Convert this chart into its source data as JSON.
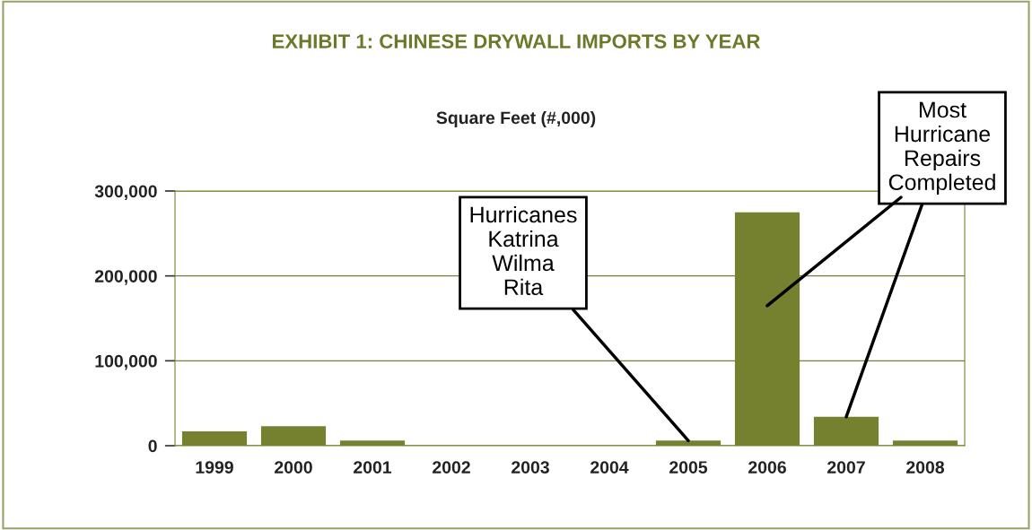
{
  "chart_data": {
    "type": "bar",
    "title": "EXHIBIT 1: CHINESE DRYWALL IMPORTS BY YEAR",
    "subtitle": "Square Feet (#,000)",
    "categories": [
      "1999",
      "2000",
      "2001",
      "2002",
      "2003",
      "2004",
      "2005",
      "2006",
      "2007",
      "2008"
    ],
    "values": [
      17000,
      23000,
      6000,
      0,
      0,
      0,
      6000,
      275000,
      34000,
      6000
    ],
    "color": "#76812f",
    "ylim": [
      0,
      300000
    ],
    "yticks": [
      {
        "value": 0,
        "label": "0"
      },
      {
        "value": 100000,
        "label": "100,000"
      },
      {
        "value": 200000,
        "label": "200,000"
      },
      {
        "value": 300000,
        "label": "300,000"
      }
    ],
    "grid": "y",
    "annotations": [
      {
        "text": "Hurricanes\nKatrina\nWilma\nRita",
        "x": "2005",
        "y": 6000
      },
      {
        "text": "Most\nHurricane\nRepairs\nCompleted",
        "x": "2007",
        "y": 34000
      }
    ]
  }
}
